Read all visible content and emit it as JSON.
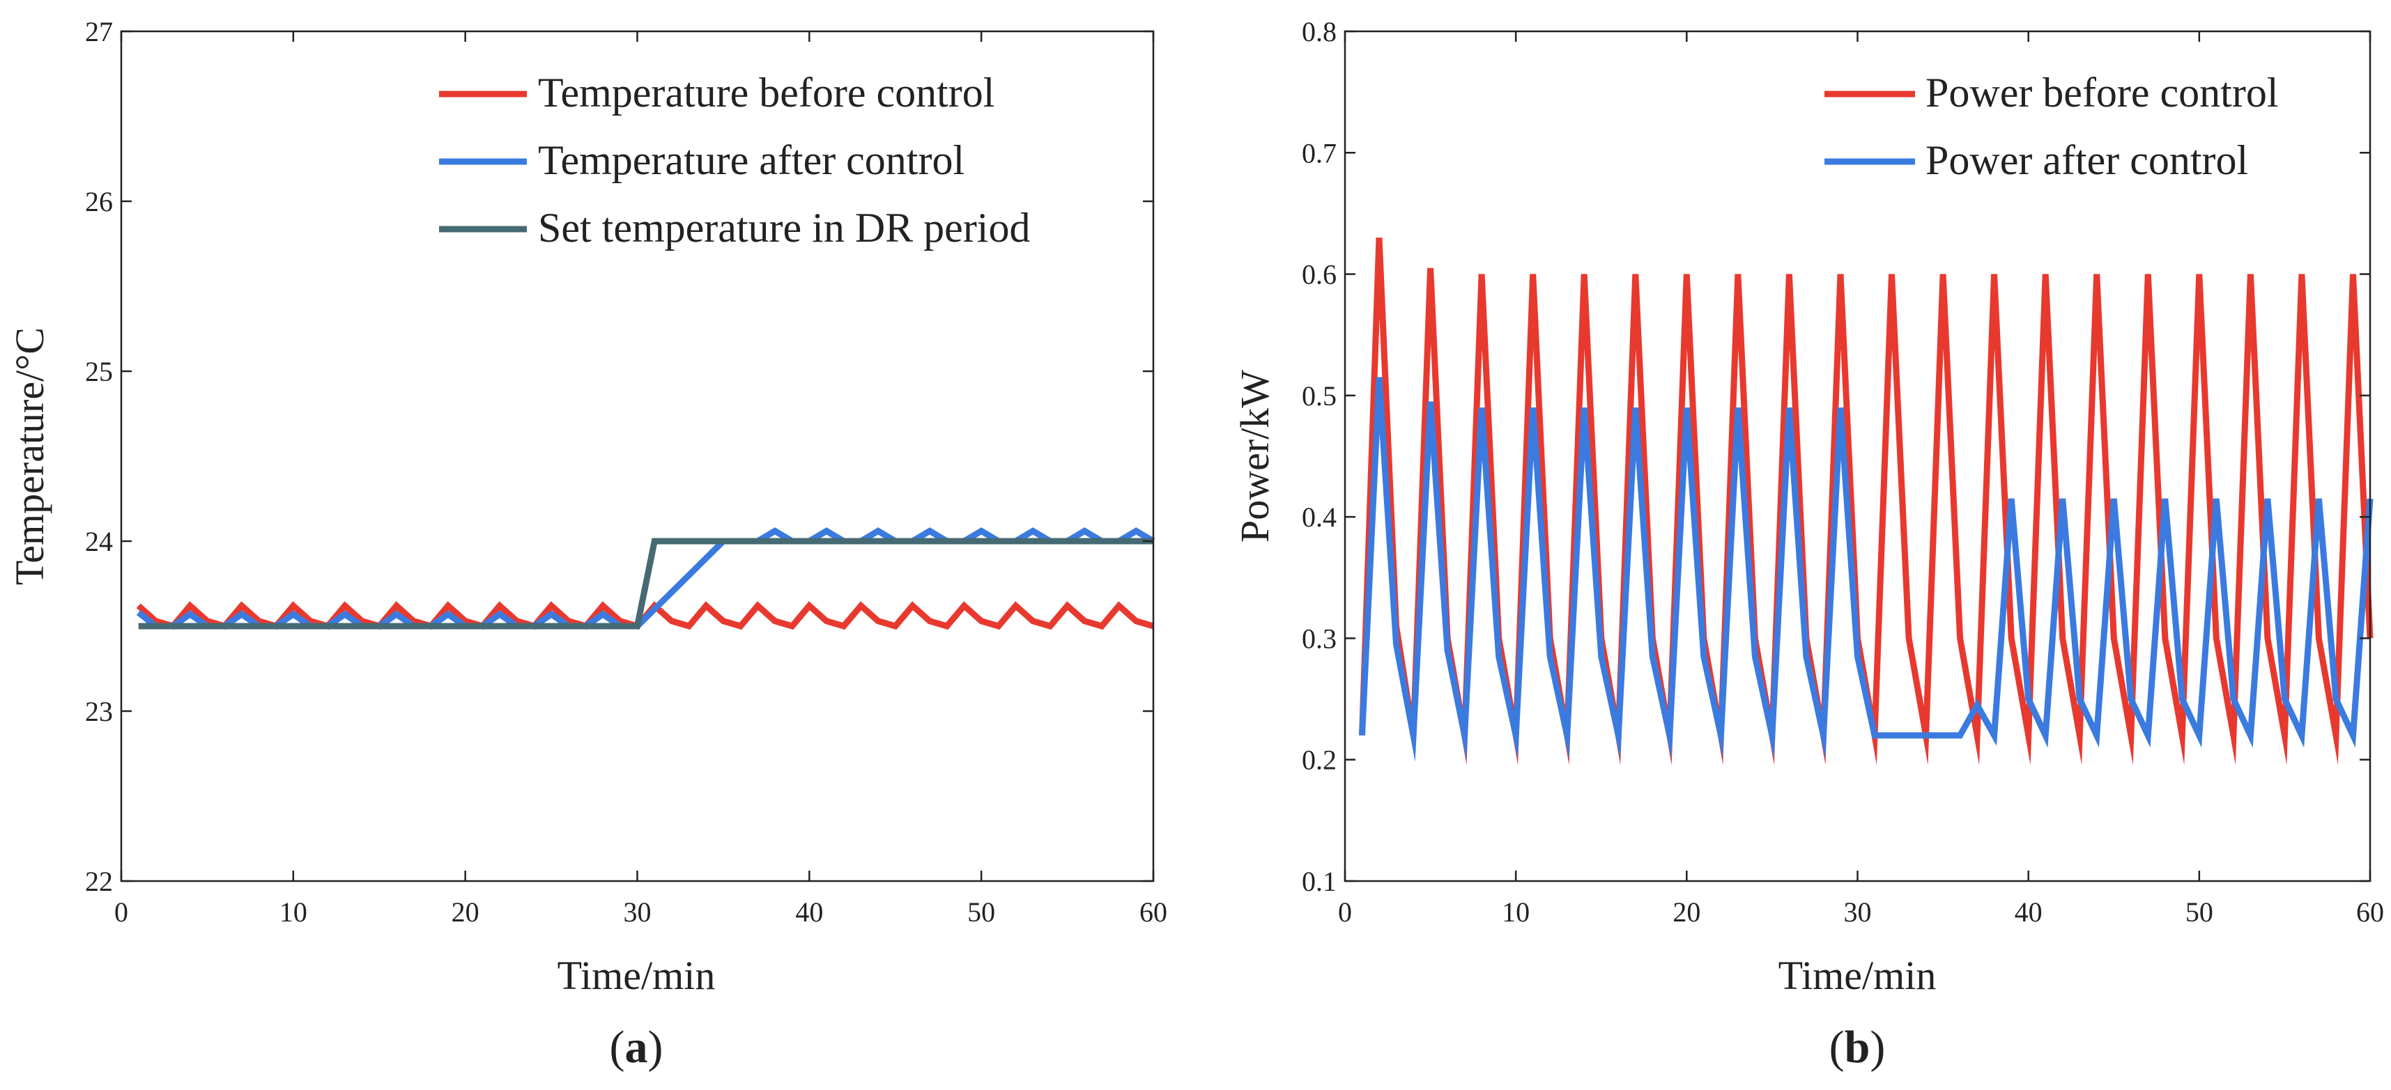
{
  "chart_data": [
    {
      "panel": "a",
      "type": "line",
      "xlabel": "Time/min",
      "ylabel": "Temperature/°C",
      "xlim": [
        0,
        60
      ],
      "ylim": [
        22,
        27
      ],
      "xticks": [
        0,
        10,
        20,
        30,
        40,
        50,
        60
      ],
      "yticks": [
        22,
        23,
        24,
        25,
        26,
        27
      ],
      "grid": false,
      "legend_position": "top-right",
      "x": [
        1,
        2,
        3,
        4,
        5,
        6,
        7,
        8,
        9,
        10,
        11,
        12,
        13,
        14,
        15,
        16,
        17,
        18,
        19,
        20,
        21,
        22,
        23,
        24,
        25,
        26,
        27,
        28,
        29,
        30,
        31,
        32,
        33,
        34,
        35,
        36,
        37,
        38,
        39,
        40,
        41,
        42,
        43,
        44,
        45,
        46,
        47,
        48,
        49,
        50,
        51,
        52,
        53,
        54,
        55,
        56,
        57,
        58,
        59,
        60
      ],
      "series": [
        {
          "name": "Temperature before control",
          "color": "#e8392f",
          "values": [
            23.62,
            23.53,
            23.5,
            23.62,
            23.53,
            23.5,
            23.62,
            23.53,
            23.5,
            23.62,
            23.53,
            23.5,
            23.62,
            23.53,
            23.5,
            23.62,
            23.53,
            23.5,
            23.62,
            23.53,
            23.5,
            23.62,
            23.53,
            23.5,
            23.62,
            23.53,
            23.5,
            23.62,
            23.53,
            23.5,
            23.62,
            23.53,
            23.5,
            23.62,
            23.53,
            23.5,
            23.62,
            23.53,
            23.5,
            23.62,
            23.53,
            23.5,
            23.62,
            23.53,
            23.5,
            23.62,
            23.53,
            23.5,
            23.62,
            23.53,
            23.5,
            23.62,
            23.53,
            23.5,
            23.62,
            23.53,
            23.5,
            23.62,
            23.53,
            23.5
          ]
        },
        {
          "name": "Temperature after control",
          "color": "#3b7be0",
          "values": [
            23.58,
            23.5,
            23.5,
            23.57,
            23.5,
            23.5,
            23.57,
            23.5,
            23.5,
            23.57,
            23.5,
            23.5,
            23.57,
            23.5,
            23.5,
            23.57,
            23.5,
            23.5,
            23.57,
            23.5,
            23.5,
            23.57,
            23.5,
            23.5,
            23.57,
            23.5,
            23.5,
            23.57,
            23.5,
            23.5,
            23.6,
            23.7,
            23.8,
            23.9,
            24.0,
            24.0,
            24.0,
            24.06,
            24.0,
            24.0,
            24.06,
            24.0,
            24.0,
            24.06,
            24.0,
            24.0,
            24.06,
            24.0,
            24.0,
            24.06,
            24.0,
            24.0,
            24.06,
            24.0,
            24.0,
            24.06,
            24.0,
            24.0,
            24.06,
            24.0
          ]
        },
        {
          "name": "Set temperature in DR period",
          "color": "#466a73",
          "values": [
            23.5,
            23.5,
            23.5,
            23.5,
            23.5,
            23.5,
            23.5,
            23.5,
            23.5,
            23.5,
            23.5,
            23.5,
            23.5,
            23.5,
            23.5,
            23.5,
            23.5,
            23.5,
            23.5,
            23.5,
            23.5,
            23.5,
            23.5,
            23.5,
            23.5,
            23.5,
            23.5,
            23.5,
            23.5,
            23.5,
            24.0,
            24.0,
            24.0,
            24.0,
            24.0,
            24.0,
            24.0,
            24.0,
            24.0,
            24.0,
            24.0,
            24.0,
            24.0,
            24.0,
            24.0,
            24.0,
            24.0,
            24.0,
            24.0,
            24.0,
            24.0,
            24.0,
            24.0,
            24.0,
            24.0,
            24.0,
            24.0,
            24.0,
            24.0,
            24.0
          ]
        }
      ],
      "caption_open": "(",
      "caption_letter": "a",
      "caption_close": ")"
    },
    {
      "panel": "b",
      "type": "line",
      "xlabel": "Time/min",
      "ylabel": "Power/kW",
      "xlim": [
        0,
        60
      ],
      "ylim": [
        0.1,
        0.8
      ],
      "xticks": [
        0,
        10,
        20,
        30,
        40,
        50,
        60
      ],
      "yticks": [
        0.1,
        0.2,
        0.3,
        0.4,
        0.5,
        0.6,
        0.7,
        0.8
      ],
      "grid": false,
      "legend_position": "top-right",
      "x": [
        1,
        2,
        3,
        4,
        5,
        6,
        7,
        8,
        9,
        10,
        11,
        12,
        13,
        14,
        15,
        16,
        17,
        18,
        19,
        20,
        21,
        22,
        23,
        24,
        25,
        26,
        27,
        28,
        29,
        30,
        31,
        32,
        33,
        34,
        35,
        36,
        37,
        38,
        39,
        40,
        41,
        42,
        43,
        44,
        45,
        46,
        47,
        48,
        49,
        50,
        51,
        52,
        53,
        54,
        55,
        56,
        57,
        58,
        59,
        60
      ],
      "series": [
        {
          "name": "Power before control",
          "color": "#e8392f",
          "values": [
            0.22,
            0.63,
            0.31,
            0.22,
            0.605,
            0.3,
            0.22,
            0.6,
            0.3,
            0.22,
            0.6,
            0.3,
            0.22,
            0.6,
            0.3,
            0.22,
            0.6,
            0.3,
            0.22,
            0.6,
            0.3,
            0.22,
            0.6,
            0.3,
            0.22,
            0.6,
            0.3,
            0.22,
            0.6,
            0.3,
            0.22,
            0.6,
            0.3,
            0.22,
            0.6,
            0.3,
            0.22,
            0.6,
            0.3,
            0.22,
            0.6,
            0.3,
            0.22,
            0.6,
            0.3,
            0.22,
            0.6,
            0.3,
            0.22,
            0.6,
            0.3,
            0.22,
            0.6,
            0.3,
            0.22,
            0.6,
            0.3,
            0.22,
            0.6,
            0.3
          ]
        },
        {
          "name": "Power after control",
          "color": "#3b7be0",
          "values": [
            0.22,
            0.515,
            0.295,
            0.22,
            0.495,
            0.29,
            0.22,
            0.49,
            0.285,
            0.22,
            0.49,
            0.285,
            0.22,
            0.49,
            0.285,
            0.22,
            0.49,
            0.285,
            0.22,
            0.49,
            0.285,
            0.22,
            0.49,
            0.285,
            0.22,
            0.49,
            0.285,
            0.22,
            0.49,
            0.285,
            0.22,
            0.22,
            0.22,
            0.22,
            0.22,
            0.22,
            0.245,
            0.22,
            0.415,
            0.25,
            0.22,
            0.415,
            0.25,
            0.22,
            0.415,
            0.25,
            0.22,
            0.415,
            0.25,
            0.22,
            0.415,
            0.25,
            0.22,
            0.415,
            0.25,
            0.22,
            0.415,
            0.25,
            0.22,
            0.415
          ]
        }
      ],
      "caption_open": "(",
      "caption_letter": "b",
      "caption_close": ")"
    }
  ]
}
